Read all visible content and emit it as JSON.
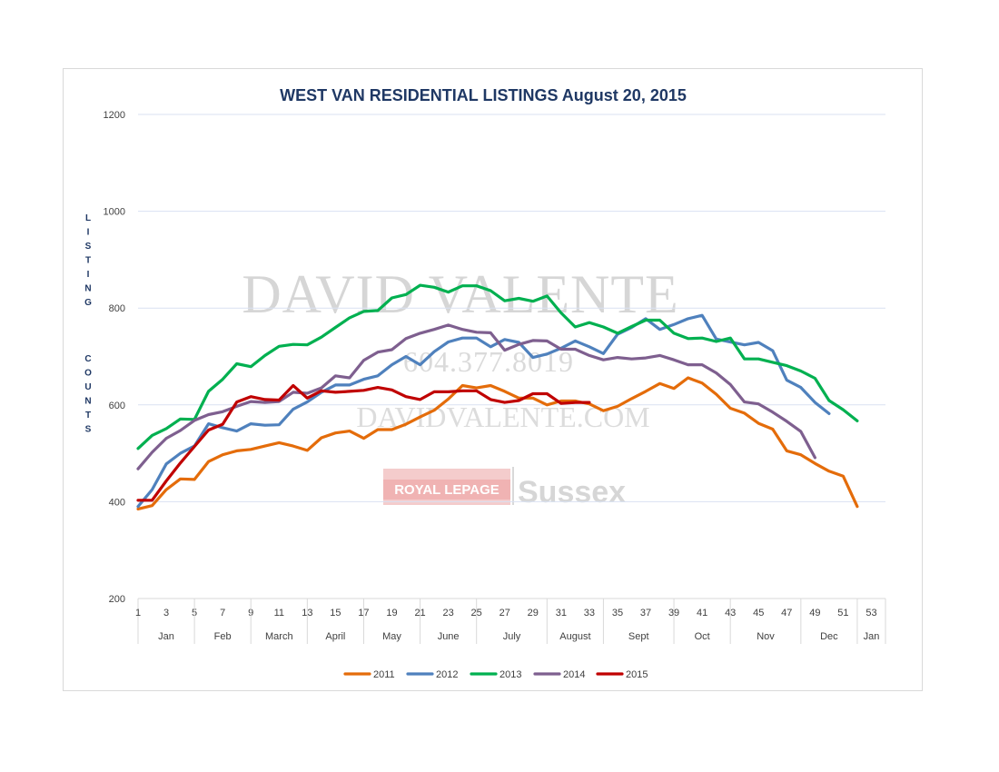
{
  "chart_data": {
    "type": "line",
    "title": "WEST VAN RESIDENTIAL LISTINGS August 20, 2015",
    "ylabel": "LISTING COUNTS",
    "ylabel_parts": [
      "LISTING",
      "COUNTS"
    ],
    "ylim": [
      200,
      1200
    ],
    "yticks": [
      200,
      400,
      600,
      800,
      1000,
      1200
    ],
    "xlim": [
      1,
      54
    ],
    "xticks": [
      1,
      3,
      5,
      7,
      9,
      11,
      13,
      15,
      17,
      19,
      21,
      23,
      25,
      27,
      29,
      31,
      33,
      35,
      37,
      39,
      41,
      43,
      45,
      47,
      49,
      51,
      53
    ],
    "months": [
      {
        "label": "Jan",
        "start": 1,
        "end": 5
      },
      {
        "label": "Feb",
        "start": 5,
        "end": 9
      },
      {
        "label": "March",
        "start": 9,
        "end": 13
      },
      {
        "label": "April",
        "start": 13,
        "end": 17
      },
      {
        "label": "May",
        "start": 17,
        "end": 21
      },
      {
        "label": "June",
        "start": 21,
        "end": 25
      },
      {
        "label": "July",
        "start": 25,
        "end": 30
      },
      {
        "label": "August",
        "start": 30,
        "end": 34
      },
      {
        "label": "Sept",
        "start": 34,
        "end": 39
      },
      {
        "label": "Oct",
        "start": 39,
        "end": 43
      },
      {
        "label": "Nov",
        "start": 43,
        "end": 48
      },
      {
        "label": "Dec",
        "start": 48,
        "end": 52
      },
      {
        "label": "Jan",
        "start": 52,
        "end": 54
      }
    ],
    "grid": true,
    "legend": "bottom",
    "series": [
      {
        "name": "2011",
        "color": "#e46c0a",
        "x_start": 1,
        "values": [
          385,
          392,
          425,
          447,
          446,
          483,
          497,
          505,
          508,
          515,
          522,
          515,
          506,
          532,
          542,
          546,
          531,
          549,
          549,
          560,
          575,
          589,
          612,
          640,
          635,
          640,
          628,
          614,
          614,
          600,
          608,
          608,
          602,
          588,
          597,
          613,
          628,
          644,
          634,
          656,
          645,
          622,
          593,
          583,
          562,
          550,
          505,
          497,
          479,
          463,
          453,
          390
        ]
      },
      {
        "name": "2012",
        "color": "#4f81bd",
        "x_start": 1,
        "values": [
          390,
          425,
          478,
          500,
          515,
          561,
          553,
          546,
          561,
          558,
          559,
          591,
          606,
          626,
          641,
          641,
          653,
          660,
          683,
          700,
          683,
          710,
          730,
          738,
          738,
          720,
          735,
          729,
          698,
          705,
          717,
          732,
          720,
          706,
          746,
          760,
          778,
          756,
          766,
          778,
          785,
          736,
          730,
          724,
          729,
          712,
          651,
          636,
          605,
          582
        ]
      },
      {
        "name": "2013",
        "color": "#00b050",
        "x_start": 1,
        "values": [
          510,
          537,
          551,
          571,
          570,
          628,
          653,
          685,
          679,
          702,
          721,
          725,
          724,
          740,
          760,
          780,
          793,
          795,
          821,
          828,
          847,
          843,
          833,
          846,
          846,
          836,
          815,
          820,
          814,
          825,
          790,
          761,
          770,
          761,
          748,
          762,
          775,
          775,
          748,
          737,
          738,
          731,
          738,
          695,
          695,
          688,
          681,
          670,
          655,
          609,
          590,
          567
        ]
      },
      {
        "name": "2014",
        "color": "#7e5f8f",
        "x_start": 1,
        "values": [
          468,
          502,
          531,
          547,
          568,
          580,
          586,
          597,
          607,
          605,
          607,
          626,
          624,
          635,
          660,
          656,
          692,
          709,
          714,
          737,
          748,
          756,
          765,
          756,
          750,
          749,
          713,
          725,
          733,
          732,
          715,
          715,
          702,
          693,
          698,
          695,
          697,
          702,
          693,
          683,
          683,
          666,
          642,
          606,
          602,
          585,
          566,
          545,
          491
        ]
      },
      {
        "name": "2015",
        "color": "#c00000",
        "x_start": 1,
        "values": [
          403,
          403,
          443,
          480,
          514,
          548,
          560,
          606,
          617,
          611,
          610,
          640,
          614,
          629,
          626,
          628,
          630,
          636,
          631,
          617,
          611,
          627,
          627,
          629,
          629,
          611,
          605,
          609,
          623,
          623,
          603,
          605,
          605
        ]
      }
    ]
  },
  "watermark": {
    "name": "DAVID VALENTE",
    "phone": "604.377.8019",
    "site": "DAVIDVALENTE.COM",
    "brand": "ROYAL LEPAGE",
    "brand_sub": "Sussex"
  }
}
